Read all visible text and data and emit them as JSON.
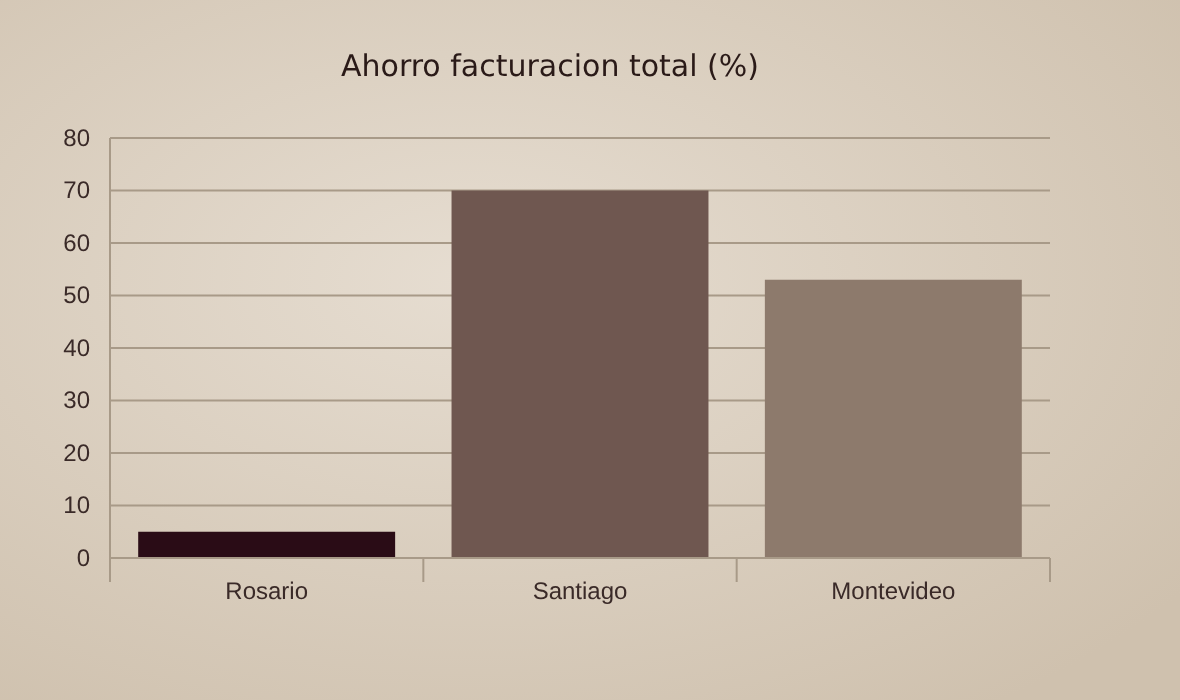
{
  "chart_data": {
    "type": "bar",
    "title": "Ahorro facturacion total (%)",
    "categories": [
      "Rosario",
      "Santiago",
      "Montevideo"
    ],
    "values": [
      5,
      70,
      53
    ],
    "colors": [
      "#2a0c16",
      "#6f5750",
      "#8d7a6c"
    ],
    "ylim": [
      0,
      80
    ],
    "yticks": [
      0,
      10,
      20,
      30,
      40,
      50,
      60,
      70,
      80
    ],
    "grid": "y"
  }
}
